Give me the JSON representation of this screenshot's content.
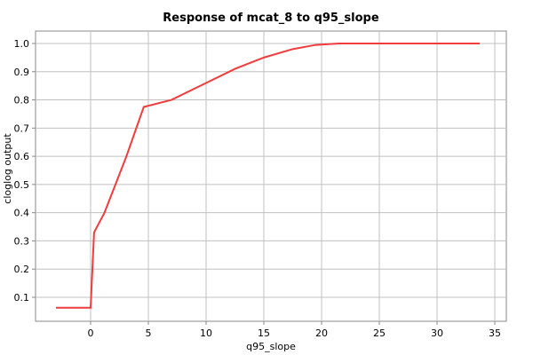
{
  "chart_data": {
    "type": "line",
    "title": "Response of mcat_8 to q95_slope",
    "x_label": "q95_slope",
    "y_label": "cloglog output",
    "x": [
      -3,
      0,
      0.3,
      1.2,
      3.1,
      4.6,
      7,
      10,
      12.5,
      15,
      17.5,
      19.5,
      21.5,
      33.7
    ],
    "series": [
      {
        "name": "mcat_8",
        "color": "#f03c3c",
        "values": [
          0.063,
          0.063,
          0.33,
          0.4,
          0.6,
          0.775,
          0.8,
          0.86,
          0.91,
          0.95,
          0.98,
          0.995,
          1.0,
          1.0
        ]
      }
    ],
    "xlim": [
      -4.77,
      36
    ],
    "xticks": [
      0,
      5,
      10,
      15,
      20,
      25,
      30,
      35
    ],
    "ylim": [
      0.015,
      1.044
    ],
    "yticks": [
      0.1,
      0.2,
      0.3,
      0.4,
      0.5,
      0.6,
      0.7,
      0.8,
      0.9,
      {
        "value": 1,
        "label": "1.0"
      }
    ],
    "grid": true
  }
}
